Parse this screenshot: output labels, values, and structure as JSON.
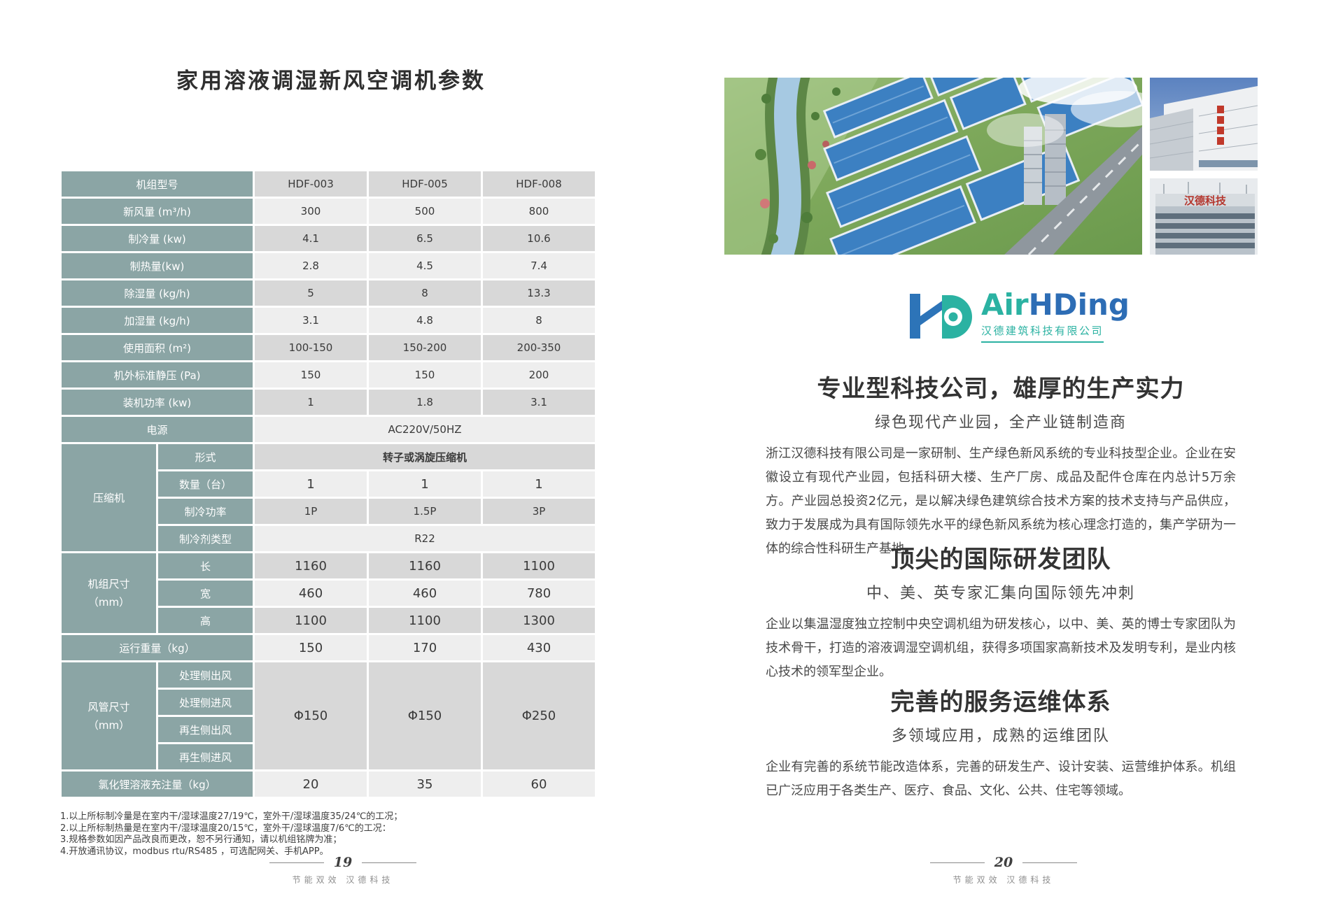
{
  "page_left": {
    "title": "家用溶液调湿新风空调机参数",
    "table": {
      "rows": [
        {
          "cells": [
            {
              "t": "机组型号",
              "k": "label",
              "cs": 2
            },
            {
              "t": "HDF-003",
              "k": "v"
            },
            {
              "t": "HDF-005",
              "k": "v"
            },
            {
              "t": "HDF-008",
              "k": "v"
            }
          ]
        },
        {
          "cells": [
            {
              "t": "新风量 (m³/h)",
              "k": "label",
              "cs": 2
            },
            {
              "t": "300",
              "k": "v"
            },
            {
              "t": "500",
              "k": "v"
            },
            {
              "t": "800",
              "k": "v"
            }
          ]
        },
        {
          "cells": [
            {
              "t": "制冷量 (kw)",
              "k": "label",
              "cs": 2
            },
            {
              "t": "4.1",
              "k": "v"
            },
            {
              "t": "6.5",
              "k": "v"
            },
            {
              "t": "10.6",
              "k": "v"
            }
          ]
        },
        {
          "cells": [
            {
              "t": "制热量(kw)",
              "k": "label",
              "cs": 2
            },
            {
              "t": "2.8",
              "k": "v"
            },
            {
              "t": "4.5",
              "k": "v"
            },
            {
              "t": "7.4",
              "k": "v"
            }
          ]
        },
        {
          "cells": [
            {
              "t": "除湿量 (kg/h)",
              "k": "label",
              "cs": 2
            },
            {
              "t": "5",
              "k": "v"
            },
            {
              "t": "8",
              "k": "v"
            },
            {
              "t": "13.3",
              "k": "v"
            }
          ]
        },
        {
          "cells": [
            {
              "t": "加湿量 (kg/h)",
              "k": "label",
              "cs": 2
            },
            {
              "t": "3.1",
              "k": "v"
            },
            {
              "t": "4.8",
              "k": "v"
            },
            {
              "t": "8",
              "k": "v"
            }
          ]
        },
        {
          "cells": [
            {
              "t": "使用面积 (m²)",
              "k": "label",
              "cs": 2
            },
            {
              "t": "100-150",
              "k": "v"
            },
            {
              "t": "150-200",
              "k": "v"
            },
            {
              "t": "200-350",
              "k": "v"
            }
          ]
        },
        {
          "cells": [
            {
              "t": "机外标准静压 (Pa)",
              "k": "label",
              "cs": 2
            },
            {
              "t": "150",
              "k": "v"
            },
            {
              "t": "150",
              "k": "v"
            },
            {
              "t": "200",
              "k": "v"
            }
          ]
        },
        {
          "cells": [
            {
              "t": "装机功率 (kw)",
              "k": "label",
              "cs": 2
            },
            {
              "t": "1",
              "k": "v"
            },
            {
              "t": "1.8",
              "k": "v"
            },
            {
              "t": "3.1",
              "k": "v"
            }
          ]
        },
        {
          "cells": [
            {
              "t": "电源",
              "k": "label",
              "cs": 2
            },
            {
              "t": "AC220V/50HZ",
              "k": "v",
              "cs": 3
            }
          ]
        },
        {
          "cells": [
            {
              "t": "压缩机",
              "k": "group",
              "rs": 4
            },
            {
              "t": "形式",
              "k": "label"
            },
            {
              "t": "转子或涡旋压缩机",
              "k": "v",
              "cs": 3,
              "em": true
            }
          ]
        },
        {
          "cells": [
            {
              "t": "数量（台）",
              "k": "label"
            },
            {
              "t": "1",
              "k": "v",
              "lg": true
            },
            {
              "t": "1",
              "k": "v",
              "lg": true
            },
            {
              "t": "1",
              "k": "v",
              "lg": true
            }
          ]
        },
        {
          "cells": [
            {
              "t": "制冷功率",
              "k": "label"
            },
            {
              "t": "1P",
              "k": "v"
            },
            {
              "t": "1.5P",
              "k": "v"
            },
            {
              "t": "3P",
              "k": "v"
            }
          ]
        },
        {
          "cells": [
            {
              "t": "制冷剂类型",
              "k": "label"
            },
            {
              "t": "R22",
              "k": "v",
              "cs": 3
            }
          ]
        },
        {
          "cells": [
            {
              "t": "机组尺寸\n（mm）",
              "k": "group",
              "rs": 3
            },
            {
              "t": "长",
              "k": "label"
            },
            {
              "t": "1160",
              "k": "v",
              "lg": true
            },
            {
              "t": "1160",
              "k": "v",
              "lg": true
            },
            {
              "t": "1100",
              "k": "v",
              "lg": true
            }
          ]
        },
        {
          "cells": [
            {
              "t": "宽",
              "k": "label"
            },
            {
              "t": "460",
              "k": "v",
              "lg": true
            },
            {
              "t": "460",
              "k": "v",
              "lg": true
            },
            {
              "t": "780",
              "k": "v",
              "lg": true
            }
          ]
        },
        {
          "cells": [
            {
              "t": "高",
              "k": "label"
            },
            {
              "t": "1100",
              "k": "v",
              "lg": true
            },
            {
              "t": "1100",
              "k": "v",
              "lg": true
            },
            {
              "t": "1300",
              "k": "v",
              "lg": true
            }
          ]
        },
        {
          "cells": [
            {
              "t": "运行重量（kg）",
              "k": "label",
              "cs": 2
            },
            {
              "t": "150",
              "k": "v",
              "lg": true
            },
            {
              "t": "170",
              "k": "v",
              "lg": true
            },
            {
              "t": "430",
              "k": "v",
              "lg": true
            }
          ]
        },
        {
          "cells": [
            {
              "t": "风管尺寸\n（mm）",
              "k": "group",
              "rs": 4
            },
            {
              "t": "处理侧出风",
              "k": "label"
            },
            {
              "t": "Φ150",
              "k": "v",
              "rs": 4,
              "lg": true
            },
            {
              "t": "Φ150",
              "k": "v",
              "rs": 4,
              "lg": true
            },
            {
              "t": "Φ250",
              "k": "v",
              "rs": 4,
              "lg": true
            }
          ]
        },
        {
          "cells": [
            {
              "t": "处理侧进风",
              "k": "label"
            }
          ]
        },
        {
          "cells": [
            {
              "t": "再生侧出风",
              "k": "label"
            }
          ]
        },
        {
          "cells": [
            {
              "t": "再生侧进风",
              "k": "label"
            }
          ]
        },
        {
          "cells": [
            {
              "t": "氯化锂溶液充注量（kg）",
              "k": "label",
              "cs": 2
            },
            {
              "t": "20",
              "k": "v",
              "lg": true
            },
            {
              "t": "35",
              "k": "v",
              "lg": true
            },
            {
              "t": "60",
              "k": "v",
              "lg": true
            }
          ]
        }
      ]
    },
    "notes": [
      "1.以上所标制冷量是在室内干/湿球温度27/19℃，室外干/湿球温度35/24℃的工况；",
      "2.以上所标制热量是在室内干/湿球温度20/15℃，室外干/湿球温度7/6℃的工况：",
      "3.规格参数如因产品改良而更改，恕不另行通知，请以机组铭牌为准；",
      "4.开放通讯协议，modbus rtu/RS485 ，可选配网关、手机APP。"
    ],
    "footer": {
      "page": "19",
      "tagline": "节能双效 汉德科技"
    }
  },
  "page_right": {
    "photos": {
      "aerial_alt": "industrial-park-aerial-rendering",
      "photo1_alt": "factory-building-photo",
      "photo2_alt": "office-building-photo",
      "photo2_sign": "汉德科技"
    },
    "logo": {
      "brand_air": "Air",
      "brand_hd": "HDing",
      "company": "汉德建筑科技有限公司"
    },
    "sections": [
      {
        "heading": "专业型科技公司，雄厚的生产实力",
        "subheading": "绿色现代产业园，全产业链制造商",
        "body": "浙江汉德科技有限公司是一家研制、生产绿色新风系统的专业科技型企业。企业在安徽设立有现代产业园，包括科研大楼、生产厂房、成品及配件仓库在内总计5万余方。产业园总投资2亿元，是以解决绿色建筑综合技术方案的技术支持与产品供应，致力于发展成为具有国际领先水平的绿色新风系统为核心理念打造的，集产学研为一体的综合性科研生产基地。"
      },
      {
        "heading": "顶尖的国际研发团队",
        "subheading": "中、美、英专家汇集向国际领先冲刺",
        "body": "企业以集温湿度独立控制中央空调机组为研发核心，以中、美、英的博士专家团队为技术骨干，打造的溶液调湿空调机组，获得多项国家高新技术及发明专利，是业内核心技术的领军型企业。"
      },
      {
        "heading": "完善的服务运维体系",
        "subheading": "多领域应用，成熟的运维团队",
        "body": "企业有完善的系统节能改造体系，完善的研发生产、设计安装、运营维护体系。机组已广泛应用于各类生产、医疗、食品、文化、公共、住宅等领域。"
      }
    ],
    "footer": {
      "page": "20",
      "tagline": "节能双效 汉德科技"
    }
  },
  "colors": {
    "table_label_teal": "#8BA5A5",
    "row_dark": "#d8d8d8",
    "row_light": "#eeeeee",
    "logo_teal": "#2bb2a2",
    "logo_blue": "#2d6db5"
  }
}
